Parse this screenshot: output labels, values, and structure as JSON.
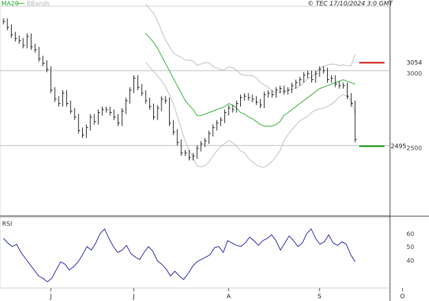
{
  "chart_data": [
    {
      "type": "line",
      "title": "",
      "timestamp": "© TEC 17/10/2024 3:0 GMT",
      "legend": [
        {
          "label": "MA20",
          "color": "#22aa22"
        },
        {
          "label": "BBands",
          "color": "#bbbbbb"
        }
      ],
      "price_range": [
        2100,
        3400
      ],
      "y_ticks": [
        {
          "value": 3000,
          "label": "3000"
        },
        {
          "value": 2500,
          "label": "2500"
        }
      ],
      "gridlines": [
        3000,
        2500
      ],
      "x_ticks": [
        "J",
        "J",
        "A",
        "S",
        "O"
      ],
      "x_tick_index": [
        12,
        33,
        57,
        80,
        101
      ],
      "resistance": {
        "value": 3054,
        "label": "3054",
        "color": "#cc0000"
      },
      "support": {
        "value": 2495,
        "label": "2495",
        "color": "#009900"
      },
      "series": [
        {
          "name": "Price",
          "values": [
            3330,
            3290,
            3240,
            3215,
            3200,
            3170,
            3230,
            3160,
            3140,
            3080,
            3050,
            3010,
            2870,
            2810,
            2780,
            2850,
            2780,
            2730,
            2690,
            2600,
            2570,
            2620,
            2690,
            2660,
            2720,
            2740,
            2740,
            2720,
            2690,
            2650,
            2730,
            2800,
            2870,
            2950,
            2890,
            2850,
            2800,
            2760,
            2690,
            2750,
            2810,
            2800,
            2650,
            2590,
            2520,
            2450,
            2450,
            2420,
            2430,
            2480,
            2510,
            2530,
            2580,
            2620,
            2650,
            2670,
            2720,
            2750,
            2740,
            2780,
            2820,
            2830,
            2820,
            2810,
            2790,
            2770,
            2840,
            2850,
            2840,
            2870,
            2880,
            2860,
            2870,
            2900,
            2920,
            2940,
            2970,
            2980,
            2940,
            2980,
            3010,
            3000,
            2940,
            2950,
            2910,
            2900,
            2900,
            2830,
            2780,
            2540
          ]
        },
        {
          "name": "MA20",
          "values": [
            3250,
            3220,
            3190,
            3150,
            3100,
            3050,
            3000,
            2950,
            2900,
            2850,
            2800,
            2770,
            2740,
            2700,
            2700,
            2710,
            2720,
            2730,
            2740,
            2750,
            2760,
            2780,
            2770,
            2750,
            2720,
            2710,
            2690,
            2680,
            2660,
            2640,
            2630,
            2630,
            2630,
            2640,
            2660,
            2700,
            2720,
            2740,
            2760,
            2780,
            2800,
            2820,
            2840,
            2860,
            2880,
            2890,
            2900,
            2910,
            2920,
            2930,
            2940,
            2930,
            2920,
            2910
          ]
        },
        {
          "name": "RSI",
          "values": [
            62,
            58,
            55,
            57,
            50,
            45,
            40,
            35,
            30,
            28,
            25,
            28,
            35,
            42,
            40,
            35,
            38,
            42,
            48,
            55,
            52,
            58,
            66,
            70,
            62,
            55,
            50,
            52,
            56,
            49,
            46,
            44,
            50,
            55,
            51,
            43,
            40,
            36,
            30,
            34,
            30,
            27,
            32,
            38,
            42,
            44,
            46,
            48,
            54,
            55,
            50,
            60,
            58,
            56,
            55,
            58,
            63,
            60,
            56,
            60,
            62,
            65,
            60,
            52,
            58,
            64,
            60,
            55,
            58,
            66,
            70,
            62,
            57,
            59,
            65,
            58,
            56,
            59,
            57,
            48,
            42
          ]
        }
      ],
      "rsi": {
        "label": "RSI",
        "ticks": [
          "60",
          "50",
          "40"
        ]
      }
    }
  ]
}
